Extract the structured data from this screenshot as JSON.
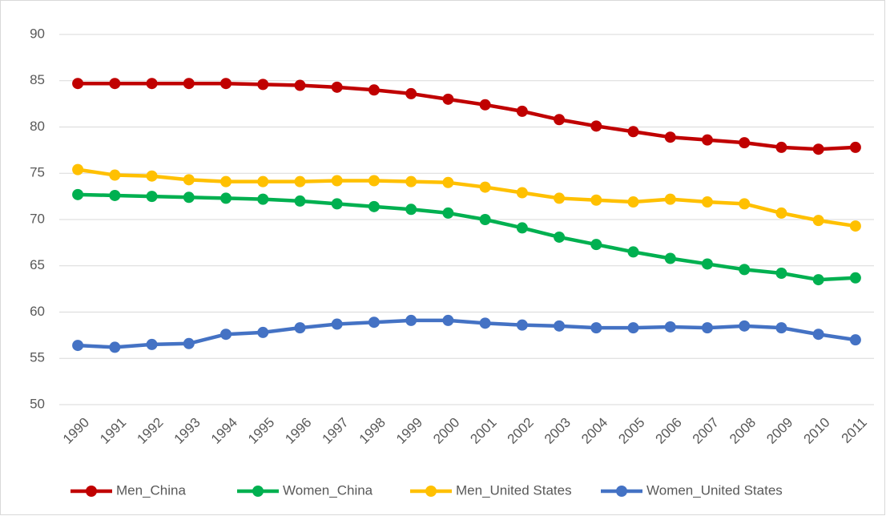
{
  "chart_data": {
    "type": "line",
    "categories": [
      "1990",
      "1991",
      "1992",
      "1993",
      "1994",
      "1995",
      "1996",
      "1997",
      "1998",
      "1999",
      "2000",
      "2001",
      "2002",
      "2003",
      "2004",
      "2005",
      "2006",
      "2007",
      "2008",
      "2009",
      "2010",
      "2011"
    ],
    "series": [
      {
        "name": "Men_China",
        "color": "#c00000",
        "values": [
          84.7,
          84.7,
          84.7,
          84.7,
          84.7,
          84.6,
          84.5,
          84.3,
          84.0,
          83.6,
          83.0,
          82.4,
          81.7,
          80.8,
          80.1,
          79.5,
          78.9,
          78.6,
          78.3,
          77.8,
          77.6,
          77.8
        ]
      },
      {
        "name": "Women_China",
        "color": "#00b050",
        "values": [
          72.7,
          72.6,
          72.5,
          72.4,
          72.3,
          72.2,
          72.0,
          71.7,
          71.4,
          71.1,
          70.7,
          70.0,
          69.1,
          68.1,
          67.3,
          66.5,
          65.8,
          65.2,
          64.6,
          64.2,
          63.5,
          63.7
        ]
      },
      {
        "name": "Men_United States",
        "color": "#ffc000",
        "values": [
          75.4,
          74.8,
          74.7,
          74.3,
          74.1,
          74.1,
          74.1,
          74.2,
          74.2,
          74.1,
          74.0,
          73.5,
          72.9,
          72.3,
          72.1,
          71.9,
          72.2,
          71.9,
          71.7,
          70.7,
          69.9,
          69.3
        ]
      },
      {
        "name": "Women_United States",
        "color": "#4472c4",
        "values": [
          56.4,
          56.2,
          56.5,
          56.6,
          57.6,
          57.8,
          58.3,
          58.7,
          58.9,
          59.1,
          59.1,
          58.8,
          58.6,
          58.5,
          58.3,
          58.3,
          58.4,
          58.3,
          58.5,
          58.3,
          57.6,
          57.0
        ]
      }
    ],
    "ylim": [
      50,
      90
    ],
    "yticks": [
      50,
      55,
      60,
      65,
      70,
      75,
      80,
      85,
      90
    ],
    "grid": true,
    "legend": "bottom"
  }
}
